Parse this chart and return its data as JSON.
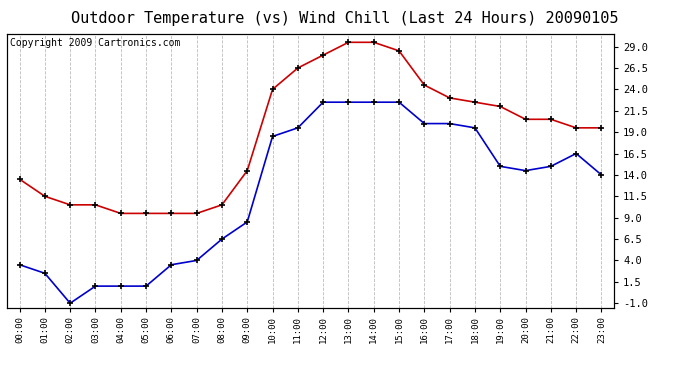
{
  "title": "Outdoor Temperature (vs) Wind Chill (Last 24 Hours) 20090105",
  "copyright": "Copyright 2009 Cartronics.com",
  "hours": [
    "00:00",
    "01:00",
    "02:00",
    "03:00",
    "04:00",
    "05:00",
    "06:00",
    "07:00",
    "08:00",
    "09:00",
    "10:00",
    "11:00",
    "12:00",
    "13:00",
    "14:00",
    "15:00",
    "16:00",
    "17:00",
    "18:00",
    "19:00",
    "20:00",
    "21:00",
    "22:00",
    "23:00"
  ],
  "outdoor_temp": [
    13.5,
    11.5,
    10.5,
    10.5,
    9.5,
    9.5,
    9.5,
    9.5,
    10.5,
    14.5,
    24.0,
    26.5,
    28.0,
    29.5,
    29.5,
    28.5,
    24.5,
    23.0,
    22.5,
    22.0,
    20.5,
    20.5,
    19.5,
    19.5
  ],
  "wind_chill": [
    3.5,
    2.5,
    -1.0,
    1.0,
    1.0,
    1.0,
    3.5,
    4.0,
    6.5,
    8.5,
    18.5,
    19.5,
    22.5,
    22.5,
    22.5,
    22.5,
    20.0,
    20.0,
    19.5,
    15.0,
    14.5,
    15.0,
    16.5,
    14.0
  ],
  "temp_color": "#cc0000",
  "wind_color": "#0000cc",
  "bg_color": "#ffffff",
  "grid_color": "#bbbbbb",
  "ylim": [
    -1.5,
    30.5
  ],
  "yticks_right": [
    -1.0,
    1.5,
    4.0,
    6.5,
    9.0,
    11.5,
    14.0,
    16.5,
    19.0,
    21.5,
    24.0,
    26.5,
    29.0
  ],
  "title_fontsize": 11,
  "copyright_fontsize": 7
}
